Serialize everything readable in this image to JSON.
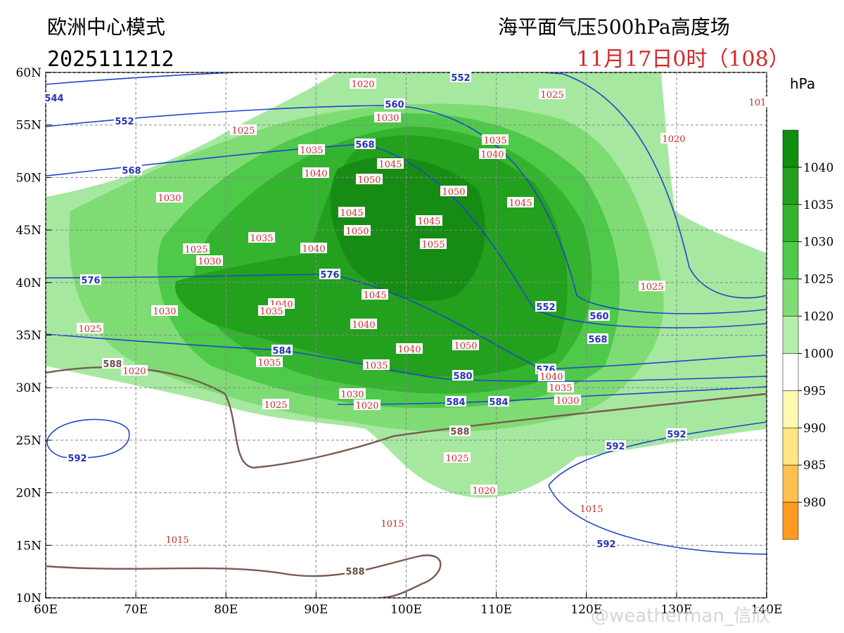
{
  "header": {
    "model": "欧洲中心模式",
    "init": "2025111212",
    "product": "海平面气压500hPa高度场",
    "valid": "11月17日0时（108）"
  },
  "map": {
    "lonlim": [
      60,
      140
    ],
    "latlim": [
      10,
      60
    ],
    "lonticks": [
      {
        "value": 60,
        "label": "60E"
      },
      {
        "value": 70,
        "label": "70E"
      },
      {
        "value": 80,
        "label": "80E"
      },
      {
        "value": 90,
        "label": "90E"
      },
      {
        "value": 100,
        "label": "100E"
      },
      {
        "value": 110,
        "label": "110E"
      },
      {
        "value": 120,
        "label": "120E"
      },
      {
        "value": 130,
        "label": "130E"
      },
      {
        "value": 140,
        "label": "140E"
      }
    ],
    "latticks": [
      {
        "value": 10,
        "label": "10N"
      },
      {
        "value": 15,
        "label": "15N"
      },
      {
        "value": 20,
        "label": "20N"
      },
      {
        "value": 25,
        "label": "25N"
      },
      {
        "value": 30,
        "label": "30N"
      },
      {
        "value": 35,
        "label": "35N"
      },
      {
        "value": 40,
        "label": "40N"
      },
      {
        "value": 45,
        "label": "45N"
      },
      {
        "value": 50,
        "label": "50N"
      },
      {
        "value": 55,
        "label": "55N"
      },
      {
        "value": 60,
        "label": "60N"
      }
    ],
    "height_labels": [
      544,
      552,
      552,
      560,
      568,
      568,
      576,
      576,
      552,
      560,
      568,
      584,
      580,
      576,
      584,
      584,
      592,
      592,
      592,
      592,
      588,
      588,
      588
    ],
    "pressure_labels": [
      1020,
      1025,
      1030,
      1025,
      1035,
      1040,
      1035,
      1045,
      1040,
      1050,
      1050,
      1030,
      1045,
      1045,
      1045,
      1050,
      1035,
      1055,
      1025,
      1040,
      1030,
      1025,
      1045,
      1040,
      1035,
      1030,
      1040,
      1025,
      1050,
      1040,
      1035,
      1035,
      1020,
      1040,
      1035,
      1030,
      1030,
      1020,
      1025,
      1025,
      1020,
      1015,
      1015,
      1015,
      1020,
      101
    ]
  },
  "colorbar": {
    "unit": "hPa",
    "ticks": [
      1040,
      1035,
      1030,
      1025,
      1020,
      1000,
      995,
      990,
      985,
      980
    ]
  },
  "watermark": "@weatherman_信欣"
}
